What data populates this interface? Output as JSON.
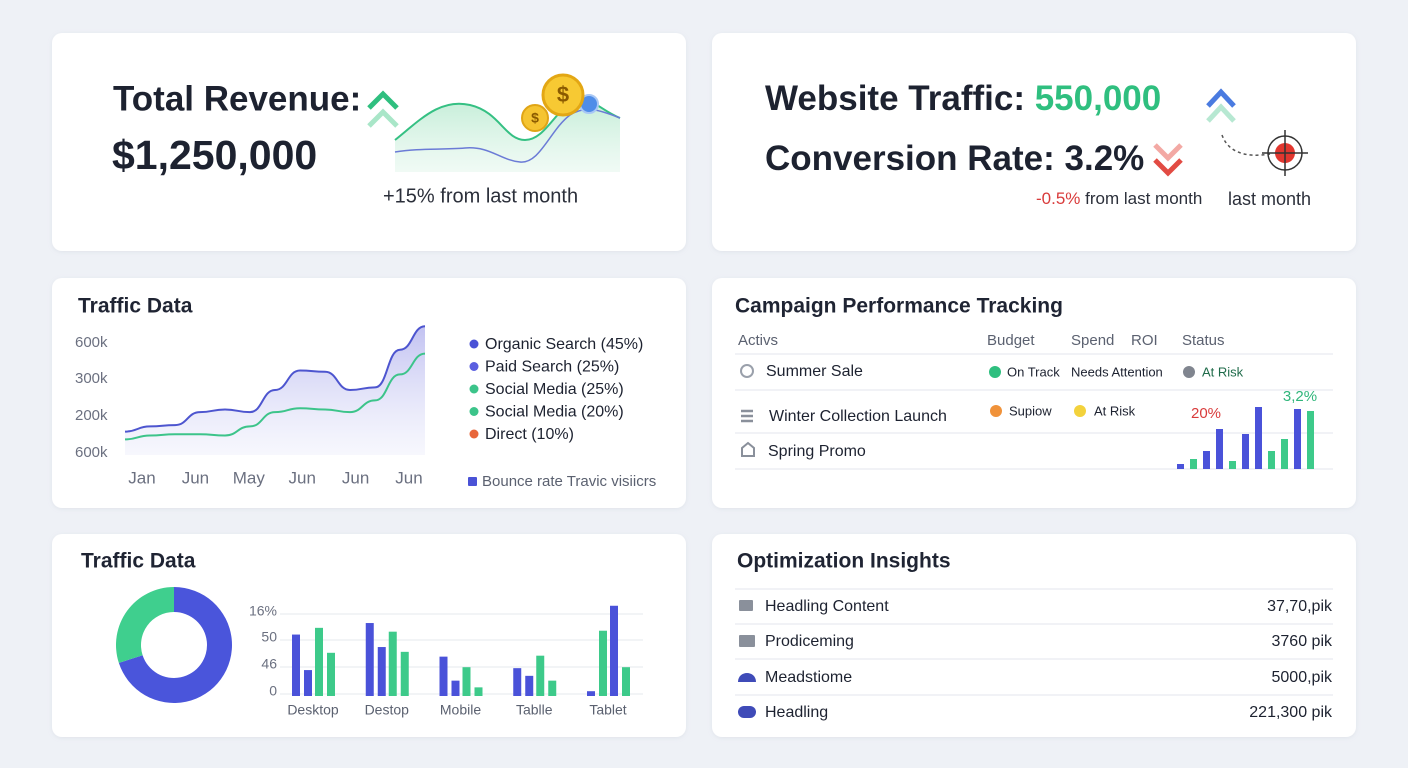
{
  "revenue": {
    "title": "Total Revenue:",
    "value": "$1,250,000",
    "change": "+15% from last month",
    "coin_symbol": "$"
  },
  "traffic_summary": {
    "title": "Website Traffic:",
    "value": "550,000",
    "conversion_title": "Conversion Rate:",
    "conversion_value": "3.2%",
    "change": "-0.5%",
    "change_text": "from last month",
    "extra": "last month"
  },
  "traffic_chart": {
    "title": "Traffic Data",
    "y_labels": [
      "600k",
      "300k",
      "200k",
      "600k"
    ],
    "x_labels": [
      "Jan",
      "Jun",
      "May",
      "Jun",
      "Jun",
      "Jun"
    ],
    "ylim": [
      0,
      100
    ],
    "series": [
      {
        "color": "#4d55cf",
        "values": [
          18,
          22,
          23,
          33,
          35,
          33,
          50,
          65,
          64,
          50,
          52,
          81,
          99
        ]
      },
      {
        "color": "#3cc48a",
        "values": [
          12,
          15,
          16,
          16,
          15,
          22,
          33,
          36,
          35,
          33,
          42,
          62,
          78
        ]
      }
    ],
    "legend": [
      {
        "label": "Organic Search (45%)",
        "color": "#4a52d6"
      },
      {
        "label": "Paid Search (25%)",
        "color": "#5a5fe0"
      },
      {
        "label": "Social Media (25%)",
        "color": "#3cc48a"
      },
      {
        "label": "Social Media (20%)",
        "color": "#3cc48a"
      },
      {
        "label": "Direct (10%)",
        "color": "#e8663a"
      }
    ],
    "footer_legend": {
      "label": "Bounce rate Travic visiicrs",
      "color": "#4a52d6"
    }
  },
  "campaigns": {
    "title": "Campaign Performance Tracking",
    "headers": [
      "Activs",
      "Budget",
      "Spend",
      "ROI",
      "Status"
    ],
    "rows": [
      {
        "name": "Summer Sale",
        "budget": {
          "label": "On Track",
          "color": "#2fbf7f"
        },
        "spend": "Needs Attention",
        "status": {
          "label": "At Risk",
          "color": "#80858f"
        }
      },
      {
        "name": "Winter Collection Launch",
        "budget": {
          "label": "Supiow",
          "color": "#f0923a"
        },
        "spend": {
          "label": "At Risk",
          "color": "#f3d23c"
        }
      },
      {
        "name": "Spring Promo"
      }
    ],
    "mini_chart": {
      "labels": [
        {
          "label": "20%",
          "color": "#d93b3b"
        },
        {
          "label": "3,2%",
          "color": "#2fb57a"
        }
      ],
      "ylim": [
        0,
        70
      ],
      "values": [
        5,
        10,
        18,
        40,
        8,
        35,
        62,
        18,
        30,
        60,
        58
      ],
      "colors": [
        "#4a52d9",
        "#3dca8a",
        "#4a52d9",
        "#4a52d9",
        "#3dca8a",
        "#4a52d9",
        "#4a52d9",
        "#3dca8a",
        "#3dca8a",
        "#4a52d9",
        "#3dca8a"
      ]
    }
  },
  "device_chart": {
    "title": "Traffic Data",
    "donut": {
      "values": [
        70,
        30
      ],
      "colors": [
        "#4a55db",
        "#3fcf8e"
      ]
    },
    "y_labels": [
      "16%",
      "50",
      "46",
      "0"
    ],
    "categories": [
      "Desktop",
      "Destop",
      "Mobile",
      "Tablle",
      "Tablet"
    ],
    "ylim": [
      0,
      100
    ],
    "groups": [
      [
        64,
        27,
        71,
        45
      ],
      [
        76,
        51,
        67,
        46
      ],
      [
        41,
        16,
        30,
        9
      ],
      [
        29,
        21,
        42,
        16
      ],
      [
        5,
        68,
        94,
        30
      ]
    ],
    "group_colors": [
      [
        "#4a52d9",
        "#4a52d9",
        "#3dca8a",
        "#3dca8a"
      ],
      [
        "#4a52d9",
        "#4a52d9",
        "#3dca8a",
        "#3dca8a"
      ],
      [
        "#4a52d9",
        "#4a52d9",
        "#3dca8a",
        "#3dca8a"
      ],
      [
        "#4a52d9",
        "#4a52d9",
        "#3dca8a",
        "#3dca8a"
      ],
      [
        "#4a52d9",
        "#3dca8a",
        "#4a52d9",
        "#3dca8a"
      ]
    ]
  },
  "insights": {
    "title": "Optimization Insights",
    "rows": [
      {
        "label": "Headling Content",
        "value": "37,70,pik"
      },
      {
        "label": "Prodiceming",
        "value": "3760 pik"
      },
      {
        "label": "Meadstiome",
        "value": "5000,pik"
      },
      {
        "label": "Headling",
        "value": "221,300 pik"
      }
    ]
  }
}
